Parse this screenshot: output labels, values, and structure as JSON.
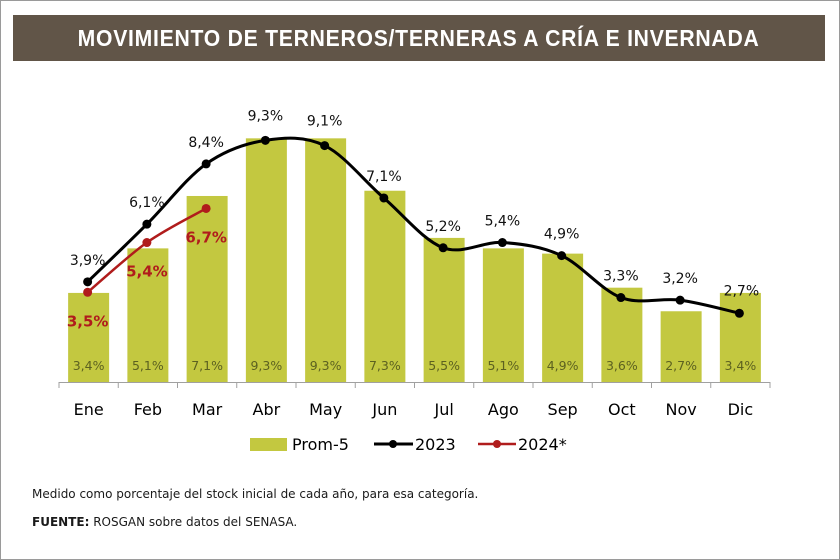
{
  "header": {
    "title": "MOVIMIENTO DE TERNEROS/TERNERAS A CRÍA E INVERNADA"
  },
  "colors": {
    "title_bg": "#615548",
    "bar": "#c3c840",
    "bar_label": "#5c6120",
    "line_2023": "#000000",
    "line_2024": "#b01c1c",
    "axis": "#a0a0a0"
  },
  "chart_data": {
    "type": "bar",
    "title": "MOVIMIENTO DE TERNEROS/TERNERAS A CRÍA E INVERNADA",
    "xlabel": "",
    "ylabel": "",
    "ylim": [
      0,
      10
    ],
    "grid": false,
    "legend_position": "bottom",
    "categories": [
      "Ene",
      "Feb",
      "Mar",
      "Abr",
      "May",
      "Jun",
      "Jul",
      "Ago",
      "Sep",
      "Oct",
      "Nov",
      "Dic"
    ],
    "series": [
      {
        "name": "Prom-5",
        "type": "bar",
        "values": [
          3.4,
          5.1,
          7.1,
          9.3,
          9.3,
          7.3,
          5.5,
          5.1,
          4.9,
          3.6,
          2.7,
          3.4
        ],
        "labels": [
          "3,4%",
          "5,1%",
          "7,1%",
          "9,3%",
          "9,3%",
          "7,3%",
          "5,5%",
          "5,1%",
          "4,9%",
          "3,6%",
          "2,7%",
          "3,4%"
        ]
      },
      {
        "name": "2023",
        "type": "line",
        "values": [
          3.9,
          6.1,
          8.4,
          9.3,
          9.1,
          7.1,
          5.2,
          5.4,
          4.9,
          3.3,
          3.2,
          2.7
        ],
        "labels": [
          "3,9%",
          "6,1%",
          "8,4%",
          "9,3%",
          "9,1%",
          "7,1%",
          "5,2%",
          "5,4%",
          "4,9%",
          "3,3%",
          "3,2%",
          "2,7%"
        ]
      },
      {
        "name": "2024*",
        "type": "line",
        "values": [
          3.5,
          5.4,
          6.7
        ],
        "labels": [
          "3,5%",
          "5,4%",
          "6,7%"
        ]
      }
    ],
    "legend": [
      "Prom-5",
      "2023",
      "2024*"
    ]
  },
  "footer": {
    "note": "Medido como porcentaje del stock inicial de cada año, para esa categoría.",
    "source_label": "FUENTE:",
    "source_text": " ROSGAN sobre datos del SENASA."
  }
}
